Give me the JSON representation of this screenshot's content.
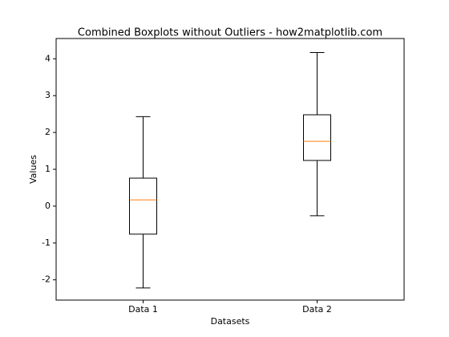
{
  "chart_data": {
    "type": "box",
    "title": "Combined Boxplots without Outliers - how2matplotlib.com",
    "x_label": "Datasets",
    "y_label": "Values",
    "categories": [
      "Data 1",
      "Data 2"
    ],
    "stats": [
      {
        "whislo": -2.22,
        "q1": -0.76,
        "med": 0.17,
        "q3": 0.76,
        "whishi": 2.43
      },
      {
        "whislo": -0.26,
        "q1": 1.24,
        "med": 1.76,
        "q3": 2.48,
        "whishi": 4.17
      }
    ],
    "box_color": "#000000",
    "median_color": "#ff7f0e",
    "ylim": [
      -2.55,
      4.55
    ],
    "yticks": [
      -2,
      -1,
      0,
      1,
      2,
      3,
      4
    ],
    "grid": false
  }
}
